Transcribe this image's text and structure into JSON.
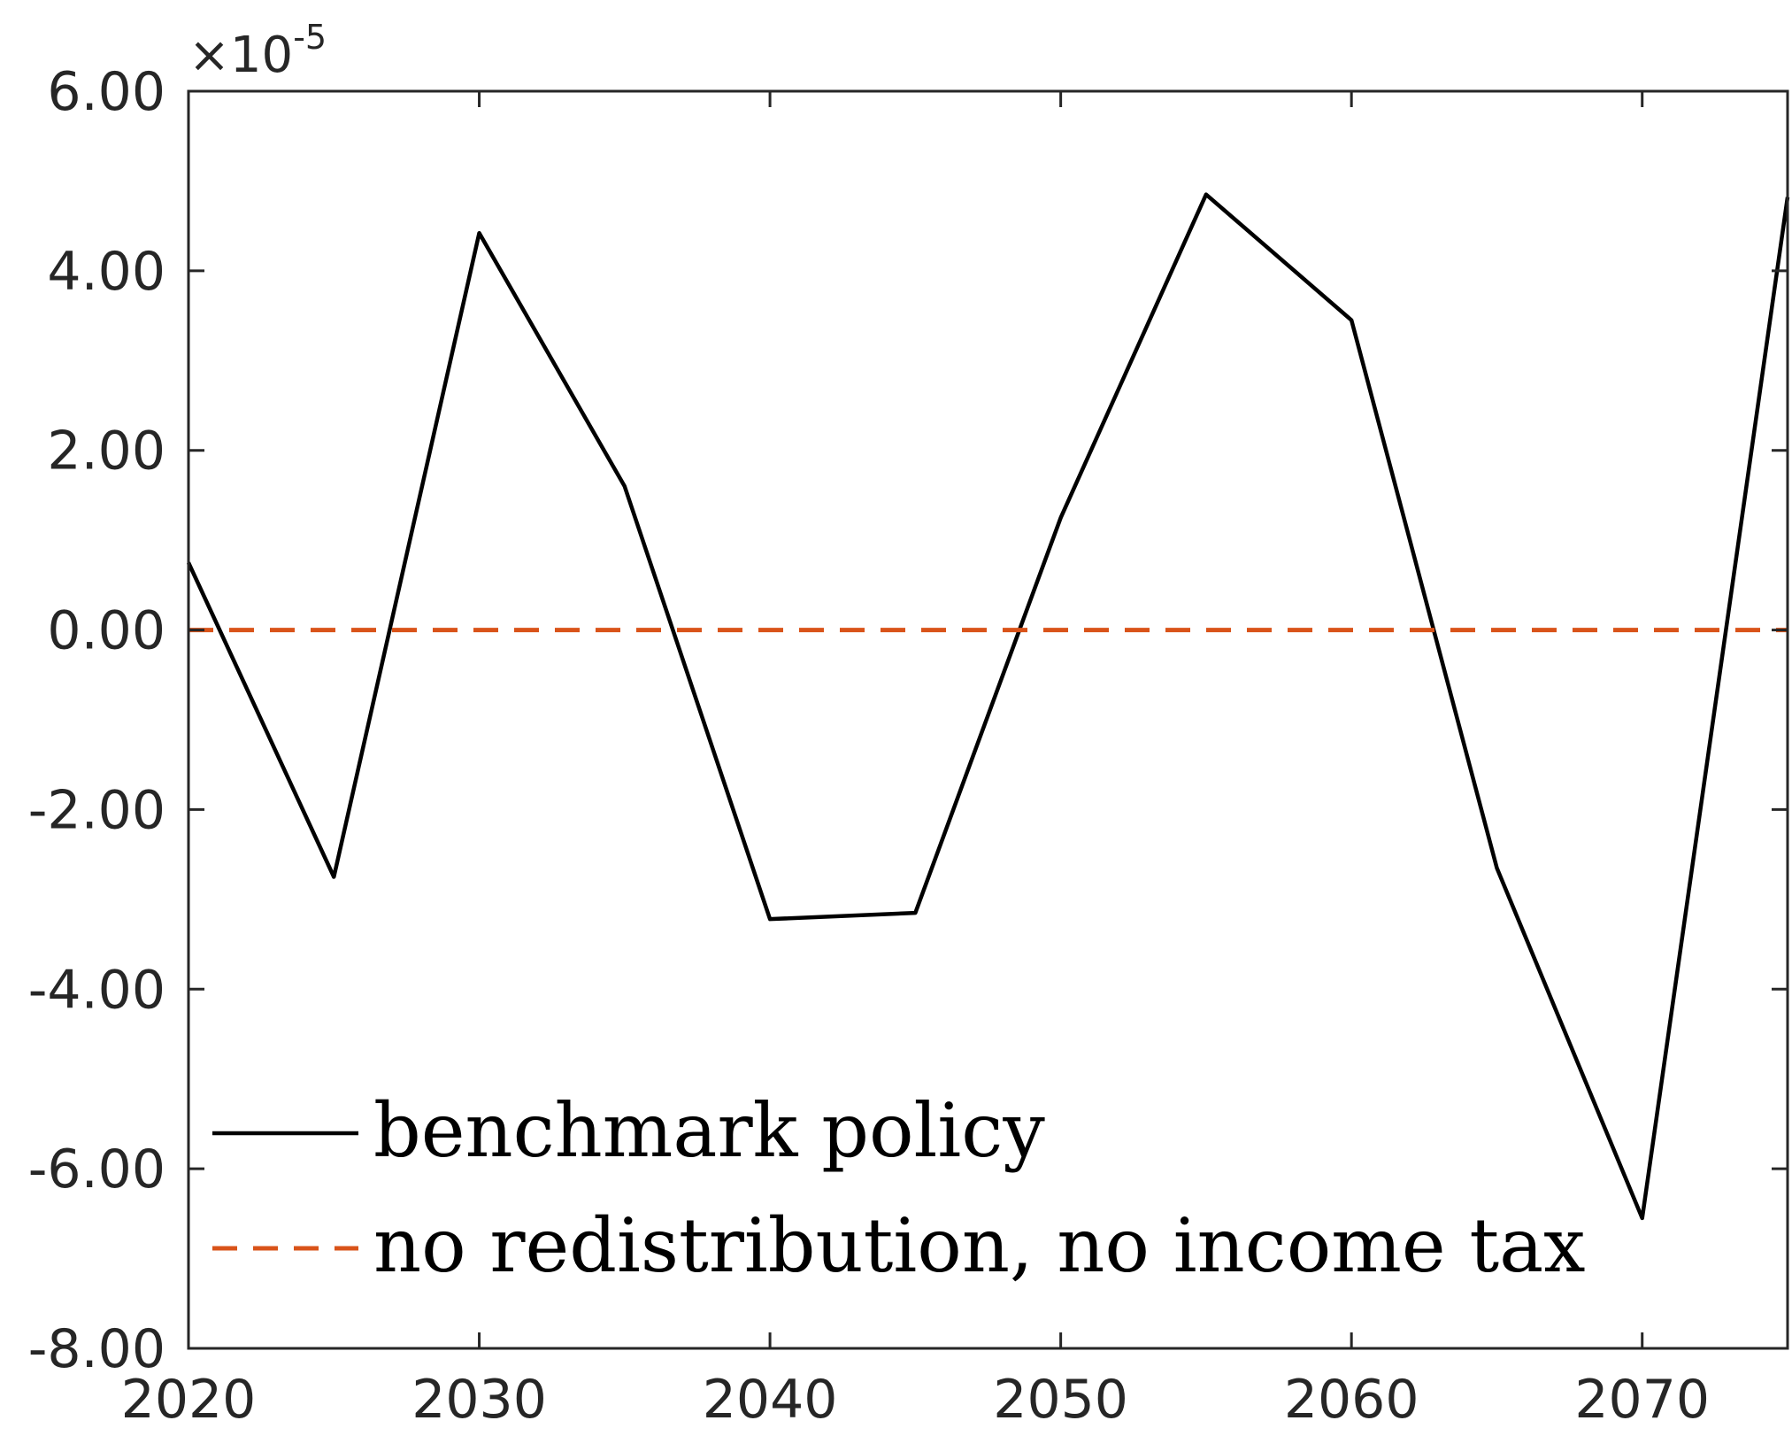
{
  "chart_data": {
    "type": "line",
    "title": "",
    "xlabel": "",
    "ylabel": "",
    "xlim": [
      2020,
      2075
    ],
    "ylim": [
      -8e-05,
      6e-05
    ],
    "exponent_label": {
      "base": "×10",
      "power": "-5"
    },
    "x_ticks": [
      2020,
      2030,
      2040,
      2050,
      2060,
      2070
    ],
    "x_tick_labels": [
      "2020",
      "2030",
      "2040",
      "2050",
      "2060",
      "2070"
    ],
    "y_ticks": [
      6,
      4,
      2,
      0,
      -2,
      -4,
      -6,
      -8
    ],
    "y_tick_labels": [
      "6.00",
      "4.00",
      "2.00",
      "0.00",
      "-2.00",
      "-4.00",
      "-6.00",
      "-8.00"
    ],
    "grid": false,
    "legend_position": "bottom-left",
    "series": [
      {
        "name": "benchmark policy",
        "color": "#000000",
        "style": "solid",
        "x": [
          2020,
          2025,
          2030,
          2035,
          2040,
          2045,
          2050,
          2055,
          2060,
          2065,
          2070,
          2075
        ],
        "y": [
          7.5e-06,
          -2.75e-05,
          4.42e-05,
          1.6e-05,
          -3.22e-05,
          -3.15e-05,
          1.25e-05,
          4.85e-05,
          3.45e-05,
          -2.65e-05,
          -6.55e-05,
          4.82e-05
        ]
      },
      {
        "name": "no redistribution, no income tax",
        "color": "#D95319",
        "style": "dashed",
        "x": [
          2020,
          2075
        ],
        "y": [
          0,
          0
        ]
      }
    ]
  }
}
